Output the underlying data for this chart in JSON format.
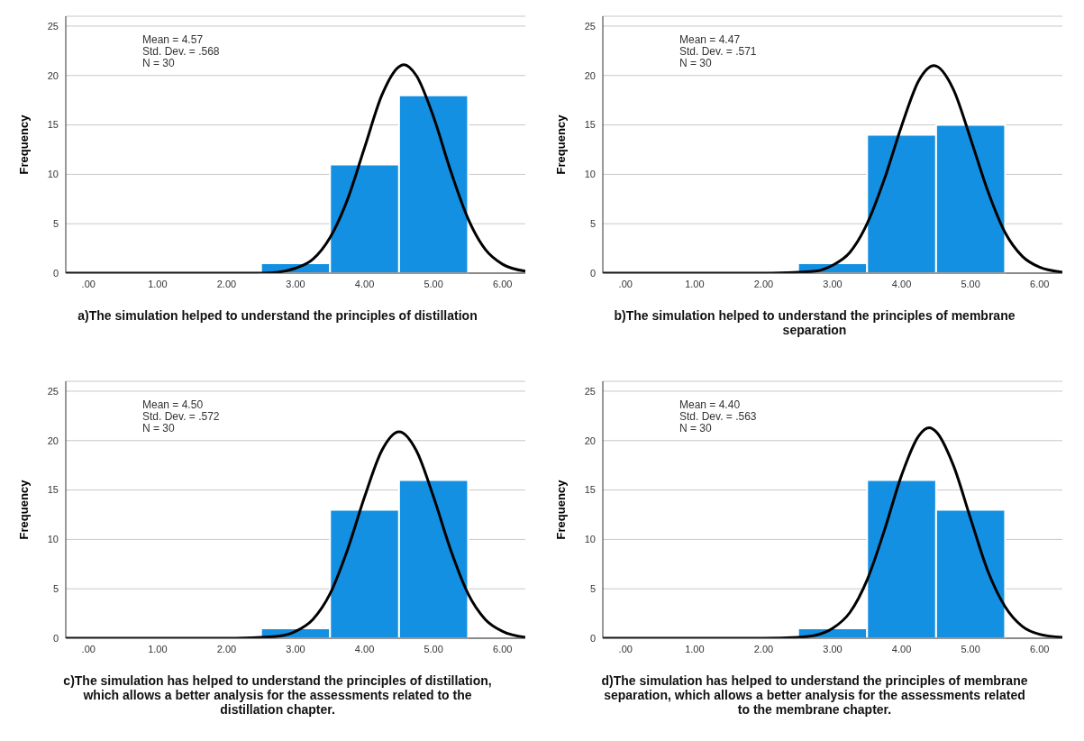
{
  "chart_data": [
    {
      "type": "histogram",
      "xlabel": "a)The simulation helped to understand the principles of distillation",
      "ylabel": "Frequency",
      "xlim": [
        -0.33,
        6.33
      ],
      "xticks": [
        {
          "value": 0,
          "label": ".00"
        },
        {
          "value": 1,
          "label": "1.00"
        },
        {
          "value": 2,
          "label": "2.00"
        },
        {
          "value": 3,
          "label": "3.00"
        },
        {
          "value": 4,
          "label": "4.00"
        },
        {
          "value": 5,
          "label": "5.00"
        },
        {
          "value": 6,
          "label": "6.00"
        }
      ],
      "ylim": [
        0,
        26
      ],
      "yticks": [
        0,
        5,
        10,
        15,
        20,
        25
      ],
      "grid": "y",
      "annotations": [
        "Mean = 4.57",
        "Std. Dev. = .568",
        "N = 30"
      ],
      "series": [
        {
          "bins": [
            2.5,
            3.5,
            4.5,
            5.5
          ],
          "values": [
            1,
            11,
            18
          ],
          "color": "#1490e3"
        },
        {
          "type": "line",
          "color": "#000000",
          "x": [
            -0.33,
            1,
            2,
            2.5,
            2.75,
            3,
            3.25,
            3.5,
            3.75,
            4,
            4.25,
            4.5,
            4.57,
            4.75,
            5,
            5.25,
            5.5,
            5.75,
            6,
            6.33
          ],
          "values": [
            0,
            0,
            0,
            0,
            0.1,
            0.5,
            1.4,
            3.6,
            7.4,
            12.7,
            18,
            20.9,
            21.1,
            20,
            15.8,
            10.3,
            5.5,
            2.4,
            0.9,
            0.2
          ]
        }
      ]
    },
    {
      "type": "histogram",
      "xlabel": "b)The simulation helped to understand the principles of membrane separation",
      "ylabel": "Frequency",
      "xlim": [
        -0.33,
        6.33
      ],
      "xticks": [
        {
          "value": 0,
          "label": ".00"
        },
        {
          "value": 1,
          "label": "1.00"
        },
        {
          "value": 2,
          "label": "2.00"
        },
        {
          "value": 3,
          "label": "3.00"
        },
        {
          "value": 4,
          "label": "4.00"
        },
        {
          "value": 5,
          "label": "5.00"
        },
        {
          "value": 6,
          "label": "6.00"
        }
      ],
      "ylim": [
        0,
        26
      ],
      "yticks": [
        0,
        5,
        10,
        15,
        20,
        25
      ],
      "grid": "y",
      "annotations": [
        "Mean = 4.47",
        "Std. Dev. = .571",
        "N = 30"
      ],
      "series": [
        {
          "bins": [
            2.5,
            3.5,
            4.5,
            5.5
          ],
          "values": [
            1,
            14,
            15
          ],
          "color": "#1490e3"
        },
        {
          "type": "line",
          "color": "#000000",
          "x": [
            -0.33,
            1,
            2,
            2.5,
            2.75,
            3,
            3.25,
            3.5,
            3.75,
            4,
            4.25,
            4.47,
            4.75,
            5,
            5.25,
            5.5,
            5.75,
            6,
            6.33
          ],
          "values": [
            0,
            0,
            0,
            0.1,
            0.2,
            0.8,
            2.1,
            5,
            9.5,
            14.9,
            19.5,
            21,
            18.6,
            13.6,
            8.3,
            4.1,
            1.7,
            0.6,
            0.1
          ]
        }
      ]
    },
    {
      "type": "histogram",
      "xlabel": "c)The simulation has helped to understand the principles of distillation, which allows a better analysis for the assessments related to the distillation chapter.",
      "ylabel": "Frequency",
      "xlim": [
        -0.33,
        6.33
      ],
      "xticks": [
        {
          "value": 0,
          "label": ".00"
        },
        {
          "value": 1,
          "label": "1.00"
        },
        {
          "value": 2,
          "label": "2.00"
        },
        {
          "value": 3,
          "label": "3.00"
        },
        {
          "value": 4,
          "label": "4.00"
        },
        {
          "value": 5,
          "label": "5.00"
        },
        {
          "value": 6,
          "label": "6.00"
        }
      ],
      "ylim": [
        0,
        26
      ],
      "yticks": [
        0,
        5,
        10,
        15,
        20,
        25
      ],
      "grid": "y",
      "annotations": [
        "Mean = 4.50",
        "Std. Dev. = .572",
        "N = 30"
      ],
      "series": [
        {
          "bins": [
            2.5,
            3.5,
            4.5,
            5.5
          ],
          "values": [
            1,
            13,
            16
          ],
          "color": "#1490e3"
        },
        {
          "type": "line",
          "color": "#000000",
          "x": [
            -0.33,
            1,
            2,
            2.5,
            2.75,
            3,
            3.25,
            3.5,
            3.75,
            4,
            4.25,
            4.5,
            4.75,
            5,
            5.25,
            5.5,
            5.75,
            6,
            6.33
          ],
          "values": [
            0,
            0,
            0,
            0.1,
            0.2,
            0.7,
            1.9,
            4.5,
            8.9,
            14.3,
            19,
            20.9,
            19,
            14.3,
            8.9,
            4.5,
            1.9,
            0.7,
            0.1
          ]
        }
      ]
    },
    {
      "type": "histogram",
      "xlabel": "d)The simulation has helped to understand the principles of membrane separation, which allows a better analysis for the assessments related to the membrane chapter.",
      "ylabel": "Frequency",
      "xlim": [
        -0.33,
        6.33
      ],
      "xticks": [
        {
          "value": 0,
          "label": ".00"
        },
        {
          "value": 1,
          "label": "1.00"
        },
        {
          "value": 2,
          "label": "2.00"
        },
        {
          "value": 3,
          "label": "3.00"
        },
        {
          "value": 4,
          "label": "4.00"
        },
        {
          "value": 5,
          "label": "5.00"
        },
        {
          "value": 6,
          "label": "6.00"
        }
      ],
      "ylim": [
        0,
        26
      ],
      "yticks": [
        0,
        5,
        10,
        15,
        20,
        25
      ],
      "grid": "y",
      "annotations": [
        "Mean = 4.40",
        "Std. Dev. = .563",
        "N = 30"
      ],
      "series": [
        {
          "bins": [
            2.5,
            3.5,
            4.5,
            5.5
          ],
          "values": [
            1,
            16,
            13
          ],
          "color": "#1490e3"
        },
        {
          "type": "line",
          "color": "#000000",
          "x": [
            -0.33,
            1,
            2,
            2.5,
            2.75,
            3,
            3.25,
            3.5,
            3.75,
            4,
            4.25,
            4.4,
            4.5,
            4.75,
            5,
            5.25,
            5.5,
            5.75,
            6,
            6.33
          ],
          "values": [
            0,
            0,
            0,
            0.1,
            0.3,
            1,
            2.6,
            5.9,
            10.9,
            16.5,
            20.5,
            21.3,
            20.9,
            17.5,
            12.1,
            6.8,
            3.2,
            1.2,
            0.4,
            0.1
          ]
        }
      ]
    }
  ]
}
